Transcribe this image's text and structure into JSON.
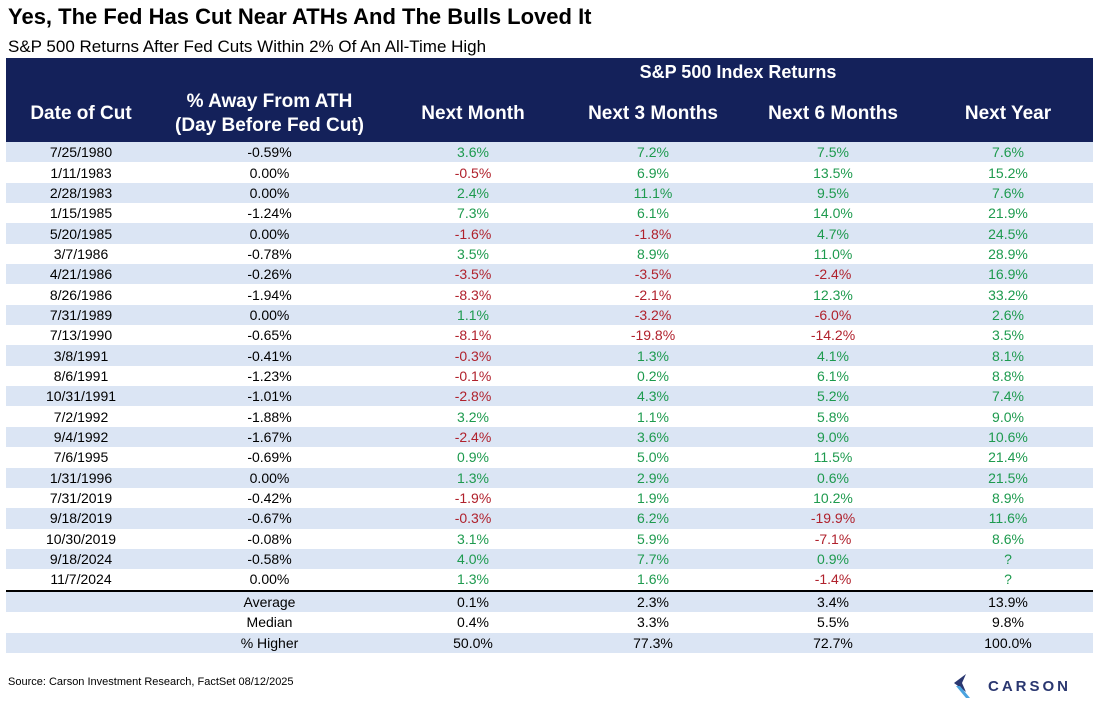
{
  "title": "Yes, The Fed Has Cut Near ATHs And The Bulls Loved It",
  "subtitle": "S&P 500 Returns After Fed Cuts Within 2% Of An All-Time High",
  "table": {
    "group_header": "S&P 500 Index Returns",
    "headers": [
      "Date of Cut",
      "% Away From ATH",
      "(Day Before Fed Cut)",
      "Next Month",
      "Next 3 Months",
      "Next 6 Months",
      "Next Year"
    ],
    "rows": [
      [
        "7/25/1980",
        "-0.59%",
        "3.6%",
        "7.2%",
        "7.5%",
        "7.6%"
      ],
      [
        "1/11/1983",
        "0.00%",
        "-0.5%",
        "6.9%",
        "13.5%",
        "15.2%"
      ],
      [
        "2/28/1983",
        "0.00%",
        "2.4%",
        "11.1%",
        "9.5%",
        "7.6%"
      ],
      [
        "1/15/1985",
        "-1.24%",
        "7.3%",
        "6.1%",
        "14.0%",
        "21.9%"
      ],
      [
        "5/20/1985",
        "0.00%",
        "-1.6%",
        "-1.8%",
        "4.7%",
        "24.5%"
      ],
      [
        "3/7/1986",
        "-0.78%",
        "3.5%",
        "8.9%",
        "11.0%",
        "28.9%"
      ],
      [
        "4/21/1986",
        "-0.26%",
        "-3.5%",
        "-3.5%",
        "-2.4%",
        "16.9%"
      ],
      [
        "8/26/1986",
        "-1.94%",
        "-8.3%",
        "-2.1%",
        "12.3%",
        "33.2%"
      ],
      [
        "7/31/1989",
        "0.00%",
        "1.1%",
        "-3.2%",
        "-6.0%",
        "2.6%"
      ],
      [
        "7/13/1990",
        "-0.65%",
        "-8.1%",
        "-19.8%",
        "-14.2%",
        "3.5%"
      ],
      [
        "3/8/1991",
        "-0.41%",
        "-0.3%",
        "1.3%",
        "4.1%",
        "8.1%"
      ],
      [
        "8/6/1991",
        "-1.23%",
        "-0.1%",
        "0.2%",
        "6.1%",
        "8.8%"
      ],
      [
        "10/31/1991",
        "-1.01%",
        "-2.8%",
        "4.3%",
        "5.2%",
        "7.4%"
      ],
      [
        "7/2/1992",
        "-1.88%",
        "3.2%",
        "1.1%",
        "5.8%",
        "9.0%"
      ],
      [
        "9/4/1992",
        "-1.67%",
        "-2.4%",
        "3.6%",
        "9.0%",
        "10.6%"
      ],
      [
        "7/6/1995",
        "-0.69%",
        "0.9%",
        "5.0%",
        "11.5%",
        "21.4%"
      ],
      [
        "1/31/1996",
        "0.00%",
        "1.3%",
        "2.9%",
        "0.6%",
        "21.5%"
      ],
      [
        "7/31/2019",
        "-0.42%",
        "-1.9%",
        "1.9%",
        "10.2%",
        "8.9%"
      ],
      [
        "9/18/2019",
        "-0.67%",
        "-0.3%",
        "6.2%",
        "-19.9%",
        "11.6%"
      ],
      [
        "10/30/2019",
        "-0.08%",
        "3.1%",
        "5.9%",
        "-7.1%",
        "8.6%"
      ],
      [
        "9/18/2024",
        "-0.58%",
        "4.0%",
        "7.7%",
        "0.9%",
        "?"
      ],
      [
        "11/7/2024",
        "0.00%",
        "1.3%",
        "1.6%",
        "-1.4%",
        "?"
      ]
    ],
    "summary": [
      [
        "Average",
        "0.1%",
        "2.3%",
        "3.4%",
        "13.9%"
      ],
      [
        "Median",
        "0.4%",
        "3.3%",
        "5.5%",
        "9.8%"
      ],
      [
        "% Higher",
        "50.0%",
        "77.3%",
        "72.7%",
        "100.0%"
      ]
    ]
  },
  "source": "Source: Carson Investment Research, FactSet 08/12/2025",
  "logo": {
    "text": "CARSON",
    "icon": "carson-chevron-logo-icon"
  },
  "colors": {
    "header_bg": "#14215a",
    "stripe": "#dbe5f4",
    "positive": "#1d9a4e",
    "negative": "#b0212c"
  }
}
